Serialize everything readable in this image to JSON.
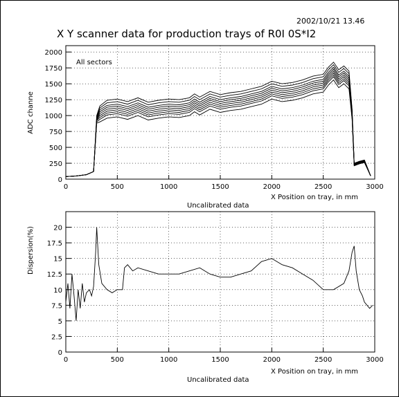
{
  "header": {
    "timestamp": "2002/10/21   13.46",
    "title": "X   Y scanner data for production trays of R0I 0S*I2"
  },
  "chart_data": [
    {
      "type": "line",
      "annotation": "All sectors",
      "xlabel": "X  Position on tray, in mm",
      "ylabel": "ADC channe",
      "caption": "Uncalibrated data",
      "xlim": [
        0,
        3000
      ],
      "ylim": [
        0,
        2100
      ],
      "x_ticks": [
        0,
        500,
        1000,
        1500,
        2000,
        2500,
        3000
      ],
      "y_ticks": [
        0,
        250,
        500,
        750,
        1000,
        1250,
        1500,
        1750,
        2000
      ],
      "grid": true,
      "x": [
        0,
        100,
        200,
        270,
        300,
        330,
        400,
        500,
        600,
        700,
        800,
        900,
        1000,
        1100,
        1200,
        1250,
        1300,
        1400,
        1500,
        1600,
        1700,
        1800,
        1900,
        2000,
        2100,
        2200,
        2300,
        2400,
        2500,
        2550,
        2600,
        2650,
        2700,
        2750,
        2780,
        2800,
        2850,
        2900,
        2960
      ],
      "series": [
        {
          "values": [
            40,
            50,
            70,
            120,
            1000,
            1150,
            1240,
            1260,
            1220,
            1280,
            1210,
            1240,
            1260,
            1250,
            1280,
            1340,
            1290,
            1380,
            1330,
            1360,
            1380,
            1420,
            1460,
            1540,
            1500,
            1520,
            1560,
            1620,
            1650,
            1760,
            1840,
            1720,
            1780,
            1700,
            1100,
            250,
            280,
            300,
            50
          ]
        },
        {
          "values": [
            40,
            50,
            70,
            120,
            980,
            1120,
            1200,
            1220,
            1180,
            1240,
            1170,
            1200,
            1220,
            1210,
            1240,
            1300,
            1250,
            1340,
            1290,
            1320,
            1340,
            1380,
            1420,
            1500,
            1460,
            1480,
            1520,
            1580,
            1610,
            1720,
            1800,
            1680,
            1740,
            1660,
            1080,
            250,
            280,
            300,
            50
          ]
        },
        {
          "values": [
            40,
            50,
            70,
            120,
            960,
            1090,
            1160,
            1180,
            1140,
            1200,
            1130,
            1160,
            1180,
            1170,
            1200,
            1260,
            1210,
            1300,
            1250,
            1280,
            1300,
            1340,
            1380,
            1460,
            1420,
            1440,
            1480,
            1540,
            1570,
            1680,
            1760,
            1640,
            1700,
            1620,
            1060,
            240,
            270,
            290,
            50
          ]
        },
        {
          "values": [
            40,
            50,
            70,
            120,
            950,
            1060,
            1130,
            1150,
            1110,
            1170,
            1100,
            1130,
            1150,
            1140,
            1170,
            1230,
            1180,
            1270,
            1220,
            1250,
            1270,
            1310,
            1350,
            1430,
            1390,
            1410,
            1450,
            1510,
            1540,
            1650,
            1730,
            1610,
            1670,
            1590,
            1040,
            240,
            270,
            290,
            50
          ]
        },
        {
          "values": [
            40,
            50,
            70,
            120,
            940,
            1030,
            1100,
            1120,
            1080,
            1140,
            1070,
            1100,
            1120,
            1110,
            1140,
            1200,
            1150,
            1240,
            1190,
            1220,
            1240,
            1280,
            1320,
            1400,
            1360,
            1380,
            1420,
            1480,
            1510,
            1620,
            1700,
            1580,
            1640,
            1560,
            1020,
            230,
            260,
            280,
            50
          ]
        },
        {
          "values": [
            40,
            50,
            70,
            120,
            930,
            1000,
            1070,
            1090,
            1050,
            1110,
            1040,
            1070,
            1090,
            1080,
            1110,
            1170,
            1120,
            1210,
            1160,
            1190,
            1210,
            1250,
            1290,
            1370,
            1330,
            1350,
            1390,
            1450,
            1480,
            1590,
            1670,
            1550,
            1610,
            1530,
            1000,
            230,
            260,
            280,
            50
          ]
        },
        {
          "values": [
            40,
            50,
            70,
            120,
            920,
            970,
            1040,
            1060,
            1020,
            1080,
            1010,
            1040,
            1060,
            1050,
            1080,
            1140,
            1090,
            1180,
            1130,
            1160,
            1180,
            1220,
            1260,
            1340,
            1300,
            1320,
            1360,
            1420,
            1450,
            1560,
            1640,
            1520,
            1580,
            1500,
            980,
            220,
            250,
            270,
            50
          ]
        },
        {
          "values": [
            40,
            50,
            70,
            120,
            900,
            940,
            1010,
            1030,
            990,
            1050,
            980,
            1010,
            1030,
            1020,
            1050,
            1110,
            1060,
            1150,
            1100,
            1130,
            1150,
            1190,
            1230,
            1310,
            1270,
            1290,
            1330,
            1390,
            1420,
            1530,
            1610,
            1490,
            1550,
            1470,
            960,
            220,
            250,
            270,
            50
          ]
        },
        {
          "values": [
            40,
            50,
            70,
            120,
            880,
            900,
            960,
            980,
            940,
            1000,
            930,
            960,
            980,
            970,
            1000,
            1060,
            1010,
            1100,
            1050,
            1080,
            1100,
            1140,
            1180,
            1260,
            1220,
            1240,
            1280,
            1340,
            1370,
            1480,
            1560,
            1440,
            1500,
            1420,
            940,
            210,
            240,
            260,
            50
          ]
        }
      ]
    },
    {
      "type": "line",
      "xlabel": "X  Position on tray, in mm",
      "ylabel": "Dispersion(%)",
      "caption": "Uncalibrated data",
      "xlim": [
        0,
        3000
      ],
      "ylim": [
        0,
        22.5
      ],
      "x_ticks": [
        0,
        500,
        1000,
        1500,
        2000,
        2500,
        3000
      ],
      "y_ticks": [
        0,
        2.5,
        5,
        7.5,
        10,
        12.5,
        15,
        17.5,
        20
      ],
      "grid": true,
      "series": [
        {
          "x": [
            0,
            20,
            40,
            60,
            80,
            100,
            120,
            140,
            160,
            180,
            200,
            230,
            250,
            270,
            290,
            300,
            320,
            350,
            400,
            450,
            500,
            550,
            570,
            600,
            650,
            700,
            800,
            900,
            1000,
            1100,
            1200,
            1300,
            1400,
            1500,
            1600,
            1700,
            1800,
            1900,
            2000,
            2050,
            2100,
            2200,
            2300,
            2400,
            2500,
            2600,
            2700,
            2750,
            2780,
            2800,
            2820,
            2850,
            2880,
            2900,
            2950,
            2980
          ],
          "values": [
            8,
            11,
            7,
            12.5,
            9,
            5,
            10,
            7,
            11,
            8,
            9.5,
            10,
            9,
            10.5,
            16,
            20,
            14,
            11,
            10,
            9.5,
            10,
            10,
            13.5,
            14,
            13,
            13.5,
            13,
            12.5,
            12.5,
            12.5,
            13,
            13.5,
            12.5,
            12,
            12,
            12.5,
            13,
            14.5,
            15,
            14.5,
            14,
            13.5,
            12.5,
            11.5,
            10,
            10,
            11,
            13,
            16,
            17,
            13,
            10,
            9,
            8,
            7,
            7.5
          ]
        }
      ]
    }
  ]
}
